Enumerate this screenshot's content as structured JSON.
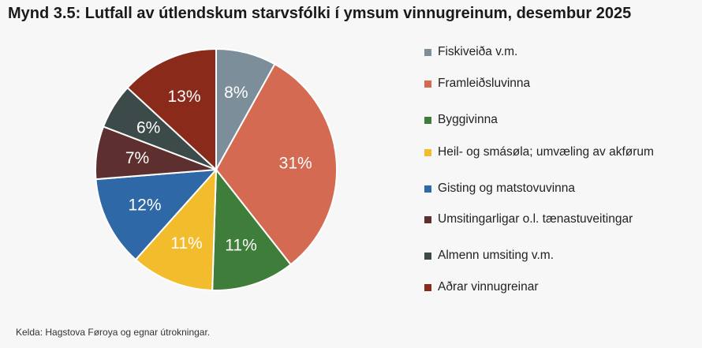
{
  "chart_data": {
    "type": "pie",
    "title": "Mynd 3.5: Lutfall av útlendskum starvsfólki í ymsum vinnugreinum, desembur 2025",
    "source": "Kelda: Hagstova Føroya og egnar útrokningar.",
    "legend_position": "right",
    "categories": [
      "Fiskiveiða v.m.",
      "Framleiðsluvinna",
      "Byggivinna",
      "Heil- og smásøla; umvæling av akførum",
      "Gisting og matstovuvinna",
      "Umsitingarligar o.l. tænastuveitingar",
      "Almenn umsiting v.m.",
      "Aðrar vinnugreinar"
    ],
    "values": [
      8,
      31,
      11,
      11,
      12,
      7,
      6,
      13
    ],
    "value_labels": [
      "8%",
      "31%",
      "11%",
      "11%",
      "12%",
      "7%",
      "6%",
      "13%"
    ],
    "colors": [
      "#7b8e99",
      "#d46a52",
      "#3f7d3a",
      "#f2bc2d",
      "#2f68a6",
      "#5e2f2f",
      "#3d4a4a",
      "#8a2a1a"
    ]
  }
}
